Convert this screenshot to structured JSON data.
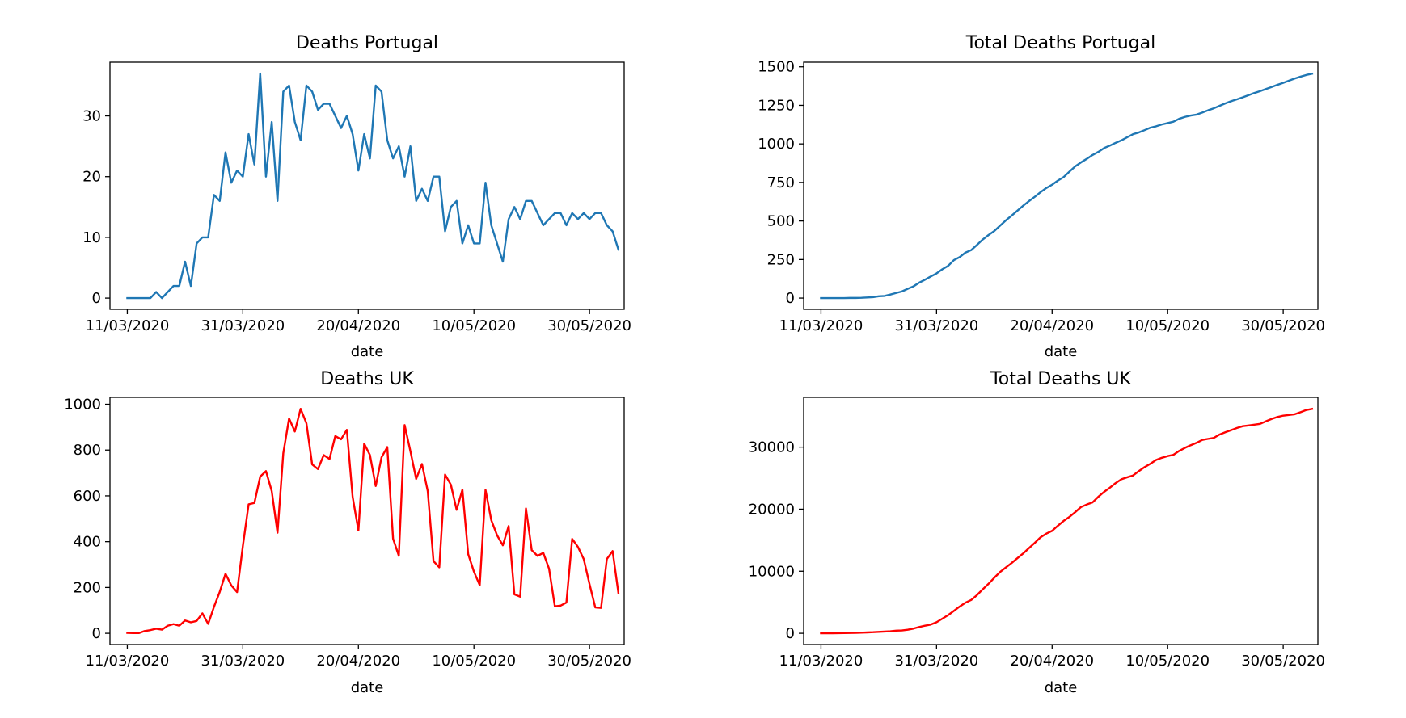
{
  "chart_data": [
    {
      "type": "line",
      "title": "Deaths Portugal",
      "xlabel": "date",
      "ylabel": "",
      "color": "#1f77b4",
      "x_start": "11/03/2020",
      "x_end": "03/06/2020",
      "xlim": [
        "08/03/2020",
        "05/06/2020"
      ],
      "ylim": [
        -1.85,
        38.85
      ],
      "x_ticks": [
        "11/03/2020",
        "31/03/2020",
        "20/04/2020",
        "10/05/2020",
        "30/05/2020"
      ],
      "y_ticks": [
        0,
        10,
        20,
        30
      ],
      "grid": false,
      "series": [
        {
          "values": [
            0,
            0,
            0,
            0,
            0,
            1,
            0,
            1,
            2,
            2,
            6,
            2,
            9,
            10,
            10,
            17,
            16,
            24,
            19,
            21,
            20,
            27,
            22,
            37,
            20,
            29,
            16,
            34,
            35,
            29,
            26,
            35,
            34,
            31,
            32,
            32,
            30,
            28,
            30,
            27,
            21,
            27,
            23,
            35,
            34,
            26,
            23,
            25,
            20,
            25,
            16,
            18,
            16,
            20,
            20,
            11,
            15,
            16,
            9,
            12,
            9,
            9,
            19,
            12,
            9,
            6,
            13,
            15,
            13,
            16,
            16,
            14,
            12,
            13,
            14,
            14,
            12,
            14,
            13,
            14,
            13,
            14,
            14,
            12,
            11,
            8
          ]
        }
      ]
    },
    {
      "type": "line",
      "title": "Total Deaths Portugal",
      "xlabel": "date",
      "ylabel": "",
      "color": "#1f77b4",
      "x_start": "11/03/2020",
      "x_end": "03/06/2020",
      "xlim": [
        "08/03/2020",
        "05/06/2020"
      ],
      "ylim": [
        -73,
        1530
      ],
      "x_ticks": [
        "11/03/2020",
        "31/03/2020",
        "20/04/2020",
        "10/05/2020",
        "30/05/2020"
      ],
      "y_ticks": [
        0,
        250,
        500,
        750,
        1000,
        1250,
        1500
      ],
      "grid": false,
      "series": [
        {
          "values": [
            0,
            0,
            0,
            0,
            0,
            1,
            1,
            2,
            4,
            6,
            12,
            14,
            23,
            33,
            43,
            60,
            76,
            100,
            119,
            140,
            160,
            187,
            209,
            246,
            266,
            295,
            311,
            345,
            380,
            409,
            435,
            470,
            504,
            535,
            567,
            599,
            629,
            657,
            687,
            714,
            735,
            762,
            785,
            820,
            854,
            880,
            903,
            928,
            948,
            973,
            989,
            1007,
            1023,
            1043,
            1063,
            1074,
            1089,
            1105,
            1114,
            1126,
            1135,
            1144,
            1163,
            1175,
            1184,
            1190,
            1203,
            1218,
            1231,
            1247,
            1263,
            1277,
            1289,
            1302,
            1316,
            1330,
            1342,
            1356,
            1369,
            1383,
            1396,
            1410,
            1424,
            1436,
            1447,
            1455
          ]
        }
      ]
    },
    {
      "type": "line",
      "title": "Deaths UK",
      "xlabel": "date",
      "ylabel": "",
      "color": "#ff0000",
      "x_start": "11/03/2020",
      "x_end": "03/06/2020",
      "xlim": [
        "08/03/2020",
        "05/06/2020"
      ],
      "ylim": [
        -49,
        1030
      ],
      "x_ticks": [
        "11/03/2020",
        "31/03/2020",
        "20/04/2020",
        "10/05/2020",
        "30/05/2020"
      ],
      "y_ticks": [
        0,
        200,
        400,
        600,
        800,
        1000
      ],
      "grid": false,
      "series": [
        {
          "values": [
            2,
            1,
            1,
            10,
            14,
            20,
            16,
            33,
            40,
            33,
            56,
            48,
            54,
            87,
            41,
            115,
            181,
            260,
            209,
            180,
            381,
            563,
            569,
            684,
            708,
            621,
            439,
            786,
            938,
            881,
            980,
            917,
            737,
            717,
            778,
            761,
            861,
            847,
            888,
            596,
            449,
            828,
            778,
            643,
            768,
            813,
            413,
            338,
            909,
            795,
            674,
            739,
            621,
            315,
            288,
            693,
            649,
            539,
            627,
            346,
            269,
            210,
            626,
            494,
            428,
            384,
            468,
            170,
            160,
            545,
            363,
            338,
            351,
            282,
            118,
            121,
            134,
            412,
            377,
            324,
            215,
            113,
            111,
            324,
            359,
            176
          ]
        }
      ]
    },
    {
      "type": "line",
      "title": "Total Deaths UK",
      "xlabel": "date",
      "ylabel": "",
      "color": "#ff0000",
      "x_start": "11/03/2020",
      "x_end": "03/06/2020",
      "xlim": [
        "08/03/2020",
        "05/06/2020"
      ],
      "ylim": [
        -1810,
        38020
      ],
      "x_ticks": [
        "11/03/2020",
        "31/03/2020",
        "20/04/2020",
        "10/05/2020",
        "30/05/2020"
      ],
      "y_ticks": [
        0,
        10000,
        20000,
        30000
      ],
      "grid": false,
      "series": [
        {
          "values": [
            8,
            9,
            10,
            21,
            35,
            55,
            71,
            104,
            144,
            177,
            233,
            281,
            335,
            422,
            463,
            578,
            759,
            1019,
            1228,
            1408,
            1789,
            2352,
            2921,
            3605,
            4313,
            4934,
            5373,
            6159,
            7097,
            7978,
            8958,
            9875,
            10612,
            11329,
            12107,
            12868,
            13729,
            14576,
            15464,
            16060,
            16509,
            17337,
            18115,
            18758,
            19526,
            20339,
            20752,
            21090,
            21999,
            22794,
            23468,
            24207,
            24828,
            25143,
            25431,
            26124,
            26773,
            27312,
            27939,
            28285,
            28554,
            28764,
            29390,
            29884,
            30312,
            30696,
            31164,
            31334,
            31494,
            32039,
            32402,
            32740,
            33091,
            33373,
            33491,
            33612,
            33746,
            34158,
            34535,
            34859,
            35074,
            35187,
            35298,
            35622,
            35981,
            36157
          ]
        }
      ]
    }
  ]
}
